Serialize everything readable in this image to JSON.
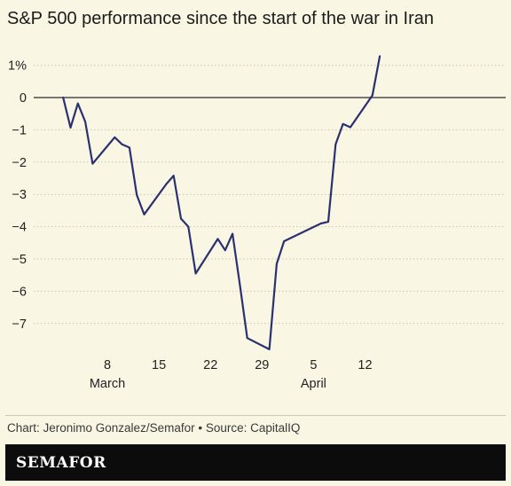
{
  "chart_data": {
    "type": "line",
    "title": "S&P 500 performance since the start of the war in Iran",
    "xlabel": "",
    "ylabel": "",
    "x_range": [
      "2026-02-28",
      "2026-04-14"
    ],
    "ylim": [
      -8,
      1.5
    ],
    "y_ticks": [
      {
        "value": 1,
        "label": "1%"
      },
      {
        "value": 0,
        "label": "0"
      },
      {
        "value": -1,
        "label": "−1"
      },
      {
        "value": -2,
        "label": "−2"
      },
      {
        "value": -3,
        "label": "−3"
      },
      {
        "value": -4,
        "label": "−4"
      },
      {
        "value": -5,
        "label": "−5"
      },
      {
        "value": -6,
        "label": "−6"
      },
      {
        "value": -7,
        "label": "−7"
      }
    ],
    "x_ticks": [
      {
        "date": "2026-03-08",
        "label": "8",
        "month": "March"
      },
      {
        "date": "2026-03-15",
        "label": "15"
      },
      {
        "date": "2026-03-22",
        "label": "22"
      },
      {
        "date": "2026-03-29",
        "label": "29"
      },
      {
        "date": "2026-04-05",
        "label": "5",
        "month": "April"
      },
      {
        "date": "2026-04-12",
        "label": "12"
      }
    ],
    "grid": true,
    "series": [
      {
        "color": "#2b3170",
        "points": [
          {
            "x": "2026-03-02",
            "y": 0.0
          },
          {
            "x": "2026-03-03",
            "y": -0.93
          },
          {
            "x": "2026-03-04",
            "y": -0.18
          },
          {
            "x": "2026-03-05",
            "y": -0.75
          },
          {
            "x": "2026-03-06",
            "y": -2.05
          },
          {
            "x": "2026-03-09",
            "y": -1.23
          },
          {
            "x": "2026-03-10",
            "y": -1.45
          },
          {
            "x": "2026-03-11",
            "y": -1.55
          },
          {
            "x": "2026-03-12",
            "y": -3.02
          },
          {
            "x": "2026-03-13",
            "y": -3.62
          },
          {
            "x": "2026-03-16",
            "y": -2.68
          },
          {
            "x": "2026-03-17",
            "y": -2.42
          },
          {
            "x": "2026-03-18",
            "y": -3.75
          },
          {
            "x": "2026-03-19",
            "y": -4.0
          },
          {
            "x": "2026-03-20",
            "y": -5.45
          },
          {
            "x": "2026-03-23",
            "y": -4.38
          },
          {
            "x": "2026-03-24",
            "y": -4.73
          },
          {
            "x": "2026-03-25",
            "y": -4.22
          },
          {
            "x": "2026-03-26",
            "y": -5.8
          },
          {
            "x": "2026-03-27",
            "y": -7.45
          },
          {
            "x": "2026-03-30",
            "y": -7.8
          },
          {
            "x": "2026-03-31",
            "y": -5.15
          },
          {
            "x": "2026-04-01",
            "y": -4.45
          },
          {
            "x": "2026-04-06",
            "y": -3.9
          },
          {
            "x": "2026-04-07",
            "y": -3.85
          },
          {
            "x": "2026-04-08",
            "y": -1.45
          },
          {
            "x": "2026-04-09",
            "y": -0.82
          },
          {
            "x": "2026-04-10",
            "y": -0.92
          },
          {
            "x": "2026-04-13",
            "y": 0.07
          },
          {
            "x": "2026-04-14",
            "y": 1.28
          }
        ]
      }
    ]
  },
  "footer": {
    "credit": "Chart: Jeronimo Gonzalez/Semafor • Source: CapitalIQ",
    "brand": "SEMAFOR"
  }
}
